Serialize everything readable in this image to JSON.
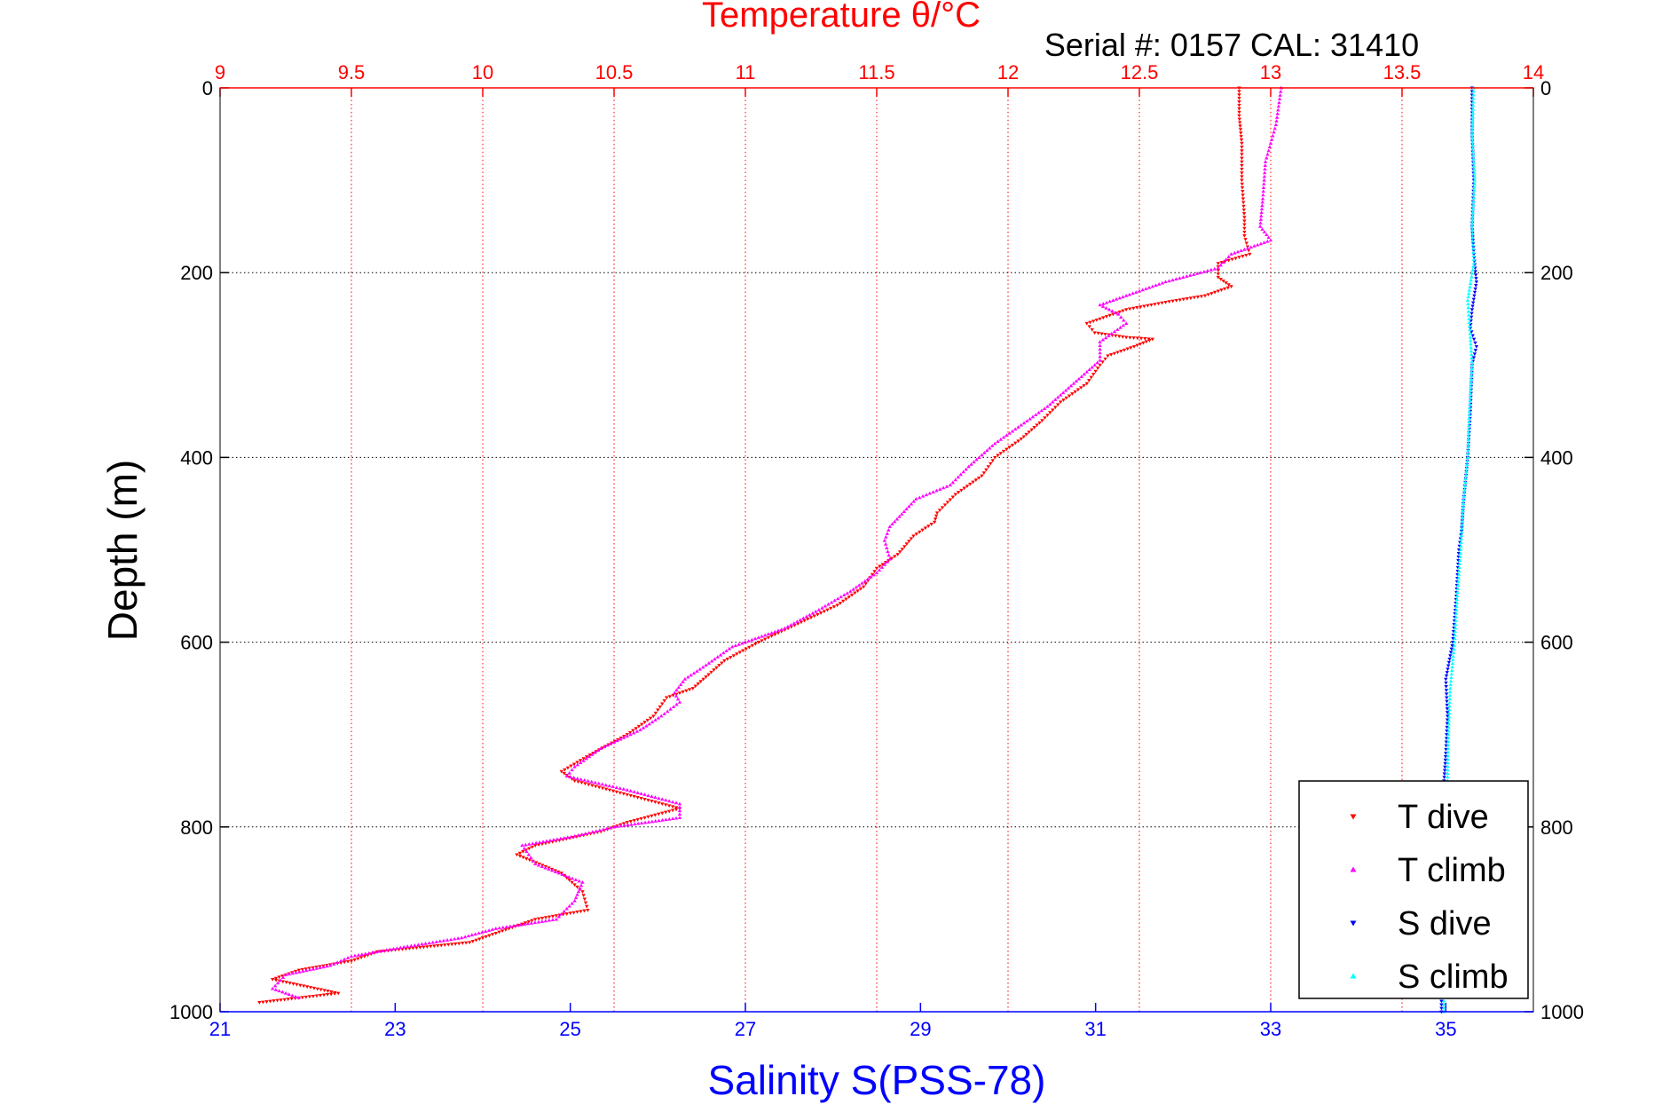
{
  "chart_data": {
    "type": "scatter",
    "title": "Temperature θ/°C",
    "subtitle": "Serial #: 0157  CAL: 31410",
    "xlabel": "Salinity S(PSS-78)",
    "ylabel": "Depth (m)",
    "x_top": {
      "label": "Temperature θ/°C",
      "range": [
        9,
        14
      ],
      "ticks": [
        "9",
        "9.5",
        "10",
        "10.5",
        "11",
        "11.5",
        "12",
        "12.5",
        "13",
        "13.5",
        "14"
      ],
      "color": "#ff0000"
    },
    "x_bottom": {
      "label": "Salinity S(PSS-78)",
      "range": [
        21,
        36
      ],
      "ticks": [
        "21",
        "23",
        "25",
        "27",
        "29",
        "31",
        "33",
        "35"
      ],
      "color": "#0000ff"
    },
    "y": {
      "range": [
        0,
        1000
      ],
      "reversed": true,
      "ticks": [
        "0",
        "200",
        "400",
        "600",
        "800",
        "1000"
      ]
    },
    "grid": true,
    "legend_position": "bottom-right",
    "series": [
      {
        "name": "T dive",
        "axis": "temperature",
        "color": "#ff0000",
        "marker": "triangle-down",
        "points": [
          [
            12.88,
            0
          ],
          [
            12.88,
            30
          ],
          [
            12.89,
            60
          ],
          [
            12.89,
            100
          ],
          [
            12.9,
            140
          ],
          [
            12.9,
            160
          ],
          [
            12.92,
            180
          ],
          [
            12.8,
            190
          ],
          [
            12.8,
            205
          ],
          [
            12.85,
            215
          ],
          [
            12.75,
            225
          ],
          [
            12.6,
            232
          ],
          [
            12.45,
            240
          ],
          [
            12.3,
            255
          ],
          [
            12.33,
            265
          ],
          [
            12.45,
            270
          ],
          [
            12.55,
            272
          ],
          [
            12.48,
            280
          ],
          [
            12.38,
            290
          ],
          [
            12.35,
            300
          ],
          [
            12.3,
            320
          ],
          [
            12.2,
            340
          ],
          [
            12.13,
            360
          ],
          [
            12.05,
            380
          ],
          [
            11.95,
            400
          ],
          [
            11.9,
            420
          ],
          [
            11.8,
            440
          ],
          [
            11.73,
            460
          ],
          [
            11.72,
            470
          ],
          [
            11.64,
            485
          ],
          [
            11.58,
            505
          ],
          [
            11.5,
            520
          ],
          [
            11.45,
            540
          ],
          [
            11.35,
            560
          ],
          [
            11.2,
            580
          ],
          [
            11.05,
            600
          ],
          [
            10.92,
            620
          ],
          [
            10.8,
            650
          ],
          [
            10.7,
            660
          ],
          [
            10.65,
            680
          ],
          [
            10.55,
            700
          ],
          [
            10.42,
            720
          ],
          [
            10.3,
            740
          ],
          [
            10.35,
            750
          ],
          [
            10.55,
            765
          ],
          [
            10.75,
            780
          ],
          [
            10.55,
            795
          ],
          [
            10.45,
            805
          ],
          [
            10.2,
            820
          ],
          [
            10.13,
            830
          ],
          [
            10.3,
            850
          ],
          [
            10.38,
            870
          ],
          [
            10.4,
            890
          ],
          [
            10.2,
            900
          ],
          [
            10.05,
            915
          ],
          [
            9.95,
            925
          ],
          [
            9.6,
            935
          ],
          [
            9.5,
            945
          ],
          [
            9.3,
            955
          ],
          [
            9.2,
            965
          ],
          [
            9.45,
            980
          ],
          [
            9.15,
            990
          ]
        ]
      },
      {
        "name": "T climb",
        "axis": "temperature",
        "color": "#ff00ff",
        "marker": "triangle-up",
        "points": [
          [
            13.04,
            0
          ],
          [
            13.03,
            20
          ],
          [
            13.02,
            40
          ],
          [
            13.0,
            60
          ],
          [
            12.98,
            80
          ],
          [
            12.97,
            120
          ],
          [
            12.96,
            150
          ],
          [
            13.0,
            165
          ],
          [
            12.85,
            180
          ],
          [
            12.8,
            195
          ],
          [
            12.6,
            210
          ],
          [
            12.45,
            225
          ],
          [
            12.35,
            235
          ],
          [
            12.42,
            245
          ],
          [
            12.45,
            255
          ],
          [
            12.35,
            275
          ],
          [
            12.35,
            295
          ],
          [
            12.25,
            320
          ],
          [
            12.15,
            345
          ],
          [
            12.05,
            365
          ],
          [
            11.95,
            385
          ],
          [
            11.85,
            410
          ],
          [
            11.78,
            430
          ],
          [
            11.65,
            445
          ],
          [
            11.55,
            475
          ],
          [
            11.53,
            490
          ],
          [
            11.55,
            510
          ],
          [
            11.5,
            525
          ],
          [
            11.4,
            545
          ],
          [
            11.28,
            565
          ],
          [
            11.15,
            585
          ],
          [
            10.95,
            605
          ],
          [
            10.85,
            625
          ],
          [
            10.77,
            640
          ],
          [
            10.73,
            655
          ],
          [
            10.75,
            665
          ],
          [
            10.68,
            680
          ],
          [
            10.6,
            695
          ],
          [
            10.45,
            715
          ],
          [
            10.35,
            735
          ],
          [
            10.32,
            745
          ],
          [
            10.55,
            760
          ],
          [
            10.75,
            775
          ],
          [
            10.75,
            790
          ],
          [
            10.5,
            800
          ],
          [
            10.35,
            810
          ],
          [
            10.15,
            820
          ],
          [
            10.2,
            840
          ],
          [
            10.38,
            860
          ],
          [
            10.35,
            880
          ],
          [
            10.28,
            900
          ],
          [
            10.05,
            910
          ],
          [
            9.92,
            920
          ],
          [
            9.7,
            930
          ],
          [
            9.5,
            940
          ],
          [
            9.42,
            950
          ],
          [
            9.25,
            960
          ],
          [
            9.2,
            975
          ],
          [
            9.3,
            985
          ]
        ]
      },
      {
        "name": "S dive",
        "axis": "salinity",
        "color": "#0000ff",
        "marker": "triangle-down",
        "points": [
          [
            35.3,
            0
          ],
          [
            35.3,
            50
          ],
          [
            35.32,
            100
          ],
          [
            35.3,
            150
          ],
          [
            35.32,
            180
          ],
          [
            35.35,
            210
          ],
          [
            35.3,
            240
          ],
          [
            35.28,
            260
          ],
          [
            35.35,
            280
          ],
          [
            35.3,
            300
          ],
          [
            35.28,
            350
          ],
          [
            35.25,
            400
          ],
          [
            35.2,
            450
          ],
          [
            35.18,
            480
          ],
          [
            35.15,
            500
          ],
          [
            35.12,
            550
          ],
          [
            35.08,
            600
          ],
          [
            35.0,
            640
          ],
          [
            35.02,
            680
          ],
          [
            35.0,
            720
          ],
          [
            34.98,
            750
          ],
          [
            34.97,
            800
          ],
          [
            34.97,
            850
          ],
          [
            34.95,
            900
          ],
          [
            34.95,
            950
          ],
          [
            34.95,
            1000
          ]
        ]
      },
      {
        "name": "S climb",
        "axis": "salinity",
        "color": "#00ffff",
        "marker": "triangle-up",
        "points": [
          [
            35.32,
            0
          ],
          [
            35.3,
            50
          ],
          [
            35.33,
            100
          ],
          [
            35.3,
            150
          ],
          [
            35.32,
            190
          ],
          [
            35.25,
            230
          ],
          [
            35.28,
            270
          ],
          [
            35.3,
            300
          ],
          [
            35.27,
            350
          ],
          [
            35.25,
            400
          ],
          [
            35.2,
            450
          ],
          [
            35.17,
            500
          ],
          [
            35.13,
            550
          ],
          [
            35.1,
            600
          ],
          [
            35.05,
            650
          ],
          [
            35.03,
            700
          ],
          [
            35.02,
            750
          ],
          [
            35.0,
            800
          ],
          [
            34.98,
            850
          ],
          [
            34.97,
            900
          ],
          [
            34.97,
            950
          ],
          [
            34.98,
            1000
          ]
        ]
      }
    ]
  }
}
